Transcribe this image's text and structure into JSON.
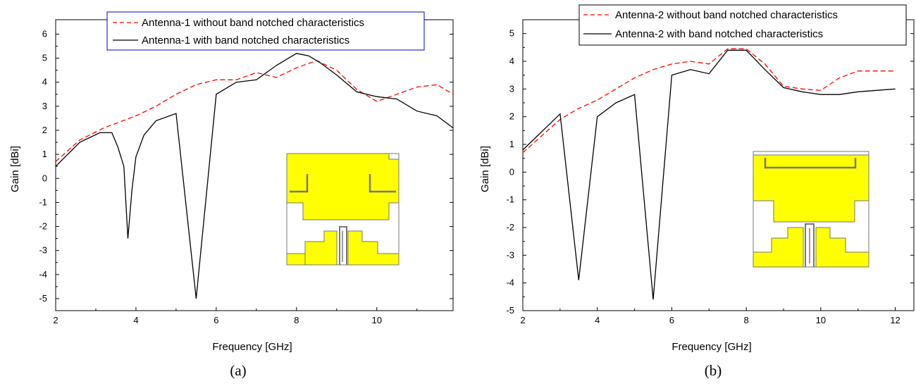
{
  "chart_data": [
    {
      "type": "line",
      "caption": "(a)",
      "xlabel": "Frequency [GHz]",
      "ylabel": "Gain [dBi]",
      "xlim": [
        2,
        11.9
      ],
      "ylim": [
        -5.5,
        6.6
      ],
      "xticks": [
        2,
        4,
        6,
        8,
        10
      ],
      "yticks": [
        -5,
        -4,
        -3,
        -2,
        -1,
        0,
        1,
        2,
        3,
        4,
        5,
        6
      ],
      "legend_position": "top-right",
      "legend_border_color": "#0000cc",
      "series": [
        {
          "name": "Antenna-1 without band notched characteristics",
          "color": "#ff0000",
          "style": "dashed",
          "x": [
            2,
            2.6,
            3.2,
            4,
            4.5,
            5,
            5.5,
            6,
            6.5,
            7,
            7.5,
            8,
            8.5,
            9,
            9.5,
            10,
            10.5,
            11,
            11.5,
            11.9
          ],
          "y": [
            0.7,
            1.6,
            2.1,
            2.6,
            3.0,
            3.5,
            3.9,
            4.1,
            4.1,
            4.4,
            4.2,
            4.6,
            4.9,
            4.5,
            3.7,
            3.2,
            3.5,
            3.8,
            3.9,
            3.5
          ]
        },
        {
          "name": "Antenna-1 with band notched characteristics",
          "color": "#000000",
          "style": "solid",
          "x": [
            2,
            2.6,
            3.1,
            3.4,
            3.55,
            3.7,
            3.8,
            3.9,
            4.0,
            4.2,
            4.5,
            5.0,
            5.5,
            6.0,
            6.5,
            7.0,
            7.5,
            8.0,
            8.3,
            8.6,
            9.0,
            9.5,
            10.0,
            10.5,
            11.0,
            11.5,
            11.9
          ],
          "y": [
            0.5,
            1.5,
            1.9,
            1.9,
            1.3,
            0.5,
            -2.5,
            -0.5,
            0.9,
            1.8,
            2.4,
            2.7,
            -5.0,
            3.5,
            4.0,
            4.1,
            4.7,
            5.2,
            5.1,
            4.8,
            4.3,
            3.6,
            3.4,
            3.3,
            2.8,
            2.6,
            2.1
          ]
        }
      ]
    },
    {
      "type": "line",
      "caption": "(b)",
      "xlabel": "Frequency [GHz]",
      "ylabel": "Gain [dBi]",
      "xlim": [
        2,
        12.5
      ],
      "ylim": [
        -5,
        5.5
      ],
      "xticks": [
        2,
        4,
        6,
        8,
        10,
        12
      ],
      "yticks": [
        -5,
        -4,
        -3,
        -2,
        -1,
        0,
        1,
        2,
        3,
        4,
        5
      ],
      "legend_position": "top-right",
      "legend_border_color": "#000000",
      "series": [
        {
          "name": "Antenna-2 without band notched characteristics",
          "color": "#ff0000",
          "style": "dashed",
          "x": [
            2,
            2.5,
            3.0,
            3.5,
            4.0,
            4.5,
            5.0,
            5.5,
            6.0,
            6.5,
            7.0,
            7.5,
            8.0,
            8.5,
            9.0,
            9.5,
            10.0,
            10.5,
            11.0,
            11.5,
            12.0
          ],
          "y": [
            0.7,
            1.3,
            1.9,
            2.3,
            2.6,
            3.0,
            3.4,
            3.7,
            3.9,
            4.0,
            3.9,
            4.45,
            4.45,
            3.9,
            3.1,
            3.0,
            2.95,
            3.4,
            3.65,
            3.65,
            3.65
          ]
        },
        {
          "name": "Antenna-2 with band notched characteristics",
          "color": "#000000",
          "style": "solid",
          "x": [
            2,
            3.0,
            3.5,
            4.0,
            4.5,
            5.0,
            5.5,
            6.0,
            6.5,
            7.0,
            7.5,
            8.0,
            8.5,
            9.0,
            9.5,
            10.0,
            10.5,
            11.0,
            11.5,
            12.0
          ],
          "y": [
            0.8,
            2.1,
            -3.9,
            2.0,
            2.5,
            2.8,
            -4.6,
            3.5,
            3.7,
            3.55,
            4.4,
            4.4,
            3.7,
            3.05,
            2.9,
            2.8,
            2.8,
            2.9,
            2.95,
            3.0
          ]
        }
      ]
    }
  ],
  "insets": [
    {
      "name": "antenna-1-layout",
      "fill_color": "#ffff00",
      "edge_color": "#777777"
    },
    {
      "name": "antenna-2-layout",
      "fill_color": "#ffff00",
      "edge_color": "#777777"
    }
  ]
}
